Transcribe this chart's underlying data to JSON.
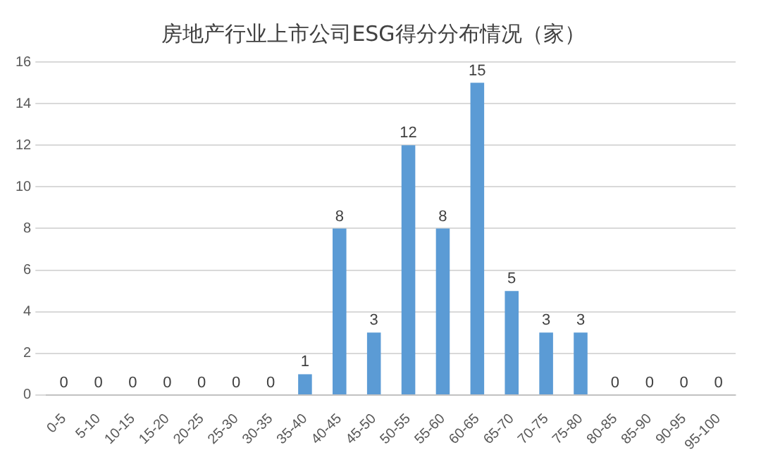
{
  "chart_data": {
    "type": "bar",
    "title": "房地产行业上市公司ESG得分分布情况（家）",
    "categories": [
      "0-5",
      "5-10",
      "10-15",
      "15-20",
      "20-25",
      "25-30",
      "30-35",
      "35-40",
      "40-45",
      "45-50",
      "50-55",
      "55-60",
      "60-65",
      "65-70",
      "70-75",
      "75-80",
      "80-85",
      "85-90",
      "90-95",
      "95-100"
    ],
    "values": [
      0,
      0,
      0,
      0,
      0,
      0,
      0,
      1,
      8,
      3,
      12,
      8,
      15,
      5,
      3,
      3,
      0,
      0,
      0,
      0
    ],
    "color": "#5b9bd5",
    "ylim": [
      0,
      16
    ],
    "yticks": [
      0,
      2,
      4,
      6,
      8,
      10,
      12,
      14,
      16
    ],
    "grid": "y",
    "data_labels": true,
    "legend": false
  }
}
